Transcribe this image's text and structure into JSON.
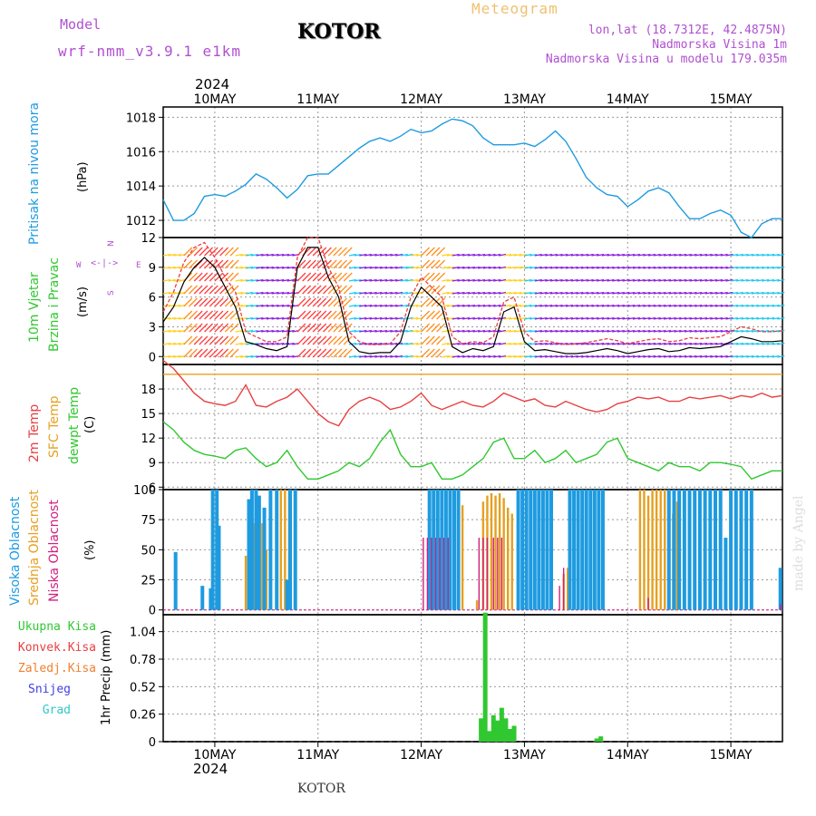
{
  "header": {
    "model_label": "Model",
    "model_name": "wrf-nmm_v3.9.1 e1km",
    "title": "KOTOR",
    "meteogram": "Meteogram",
    "lonlat": "lon,lat (18.7312E, 42.4875N)",
    "elevation": "Nadmorska Visina 1m",
    "model_elevation": "Nadmorska Visina u modelu 179.035m",
    "year_top": "2024"
  },
  "footer": {
    "year_bottom": "2024",
    "station": "KOTOR",
    "credit": "made by Angel"
  },
  "colors": {
    "pressure": "#1e9be0",
    "temp": "#e84040",
    "sfc": "#e6a020",
    "dewpt": "#30c830",
    "high_cloud": "#1e9be0",
    "mid_cloud": "#e6a020",
    "low_cloud": "#d02080",
    "precip": "#30c830",
    "wind_label": "#30c830",
    "purple": "#b050d0"
  },
  "day_labels": [
    "10MAY",
    "11MAY",
    "12MAY",
    "13MAY",
    "14MAY",
    "15MAY"
  ],
  "panels": {
    "pressure": {
      "ylabel_main": "Pritisak na nivou mora",
      "unit": "(hPa)"
    },
    "wind": {
      "label_a": "10m Vjetar",
      "label_b": "Brzina i Pravac",
      "unit": "(m/s)",
      "compass_top": "N",
      "compass_w": "W",
      "compass_e": "E",
      "compass_s": "S"
    },
    "temp": {
      "label_a": "2m Temp",
      "label_b": "SFC Temp",
      "label_c": "dewpt Temp",
      "unit": "(C)"
    },
    "cloud": {
      "label_a": "Visoka Oblacnost",
      "label_b": "Srednja Oblacnost",
      "label_c": "Niska Oblacnost",
      "unit": "(%)"
    },
    "precip": {
      "unit": "1hr Precip (mm)",
      "legend": [
        "Ukupna Kisa",
        "Konvek.Kisa",
        "Zaledj.Kisa",
        "Snijeg",
        "Grad"
      ],
      "legend_colors": [
        "#30c830",
        "#e84040",
        "#f08030",
        "#4040e0",
        "#30c8c8"
      ]
    }
  },
  "chart_data": [
    {
      "type": "line",
      "title": "",
      "ylabel": "Pritisak na nivou mora (hPa)",
      "x_unit": "days from 10 MAY 2024 00UTC",
      "xlim": [
        -0.5,
        5.5
      ],
      "yticks": [
        1012,
        1014,
        1016,
        1018
      ],
      "ylim": [
        1011,
        1018.6
      ],
      "series": [
        {
          "name": "Pritisak na nivou mora",
          "x": [
            -0.5,
            -0.4,
            -0.3,
            -0.2,
            -0.1,
            0,
            0.1,
            0.2,
            0.3,
            0.4,
            0.5,
            0.6,
            0.7,
            0.8,
            0.9,
            1.0,
            1.1,
            1.2,
            1.3,
            1.4,
            1.5,
            1.6,
            1.7,
            1.8,
            1.9,
            2.0,
            2.1,
            2.2,
            2.3,
            2.4,
            2.5,
            2.6,
            2.7,
            2.8,
            2.9,
            3.0,
            3.1,
            3.2,
            3.3,
            3.4,
            3.5,
            3.6,
            3.7,
            3.8,
            3.9,
            4.0,
            4.1,
            4.2,
            4.3,
            4.4,
            4.5,
            4.6,
            4.7,
            4.8,
            4.9,
            5.0,
            5.1,
            5.2,
            5.3,
            5.4,
            5.5
          ],
          "values": [
            1013.2,
            1012.0,
            1012.0,
            1012.4,
            1013.4,
            1013.5,
            1013.4,
            1013.7,
            1014.1,
            1014.7,
            1014.4,
            1013.9,
            1013.3,
            1013.8,
            1014.6,
            1014.7,
            1014.7,
            1015.2,
            1015.7,
            1016.2,
            1016.6,
            1016.8,
            1016.6,
            1016.9,
            1017.3,
            1017.1,
            1017.2,
            1017.6,
            1017.9,
            1017.8,
            1017.5,
            1016.8,
            1016.4,
            1016.4,
            1016.4,
            1016.5,
            1016.3,
            1016.7,
            1017.2,
            1016.6,
            1015.6,
            1014.5,
            1013.9,
            1013.5,
            1013.4,
            1012.8,
            1013.2,
            1013.7,
            1013.9,
            1013.6,
            1012.8,
            1012.1,
            1012.1,
            1012.4,
            1012.6,
            1012.3,
            1011.3,
            1011.0,
            1011.8,
            1012.1,
            1012.1
          ]
        }
      ]
    },
    {
      "type": "line",
      "title": "",
      "ylabel": "10m Vjetar Brzina i Pravac (m/s)",
      "x_unit": "days from 10 MAY 2024 00UTC",
      "xlim": [
        -0.5,
        5.5
      ],
      "yticks": [
        0,
        3,
        6,
        9,
        12
      ],
      "ylim": [
        -0.8,
        12
      ],
      "series": [
        {
          "name": "speed",
          "x": [
            -0.5,
            -0.4,
            -0.3,
            -0.2,
            -0.1,
            0,
            0.1,
            0.2,
            0.3,
            0.4,
            0.5,
            0.6,
            0.7,
            0.8,
            0.9,
            1.0,
            1.1,
            1.2,
            1.3,
            1.4,
            1.5,
            1.6,
            1.7,
            1.8,
            1.9,
            2.0,
            2.1,
            2.2,
            2.3,
            2.4,
            2.5,
            2.6,
            2.7,
            2.8,
            2.9,
            3.0,
            3.1,
            3.2,
            3.3,
            3.4,
            3.5,
            3.6,
            3.7,
            3.8,
            3.9,
            4.0,
            4.1,
            4.2,
            4.3,
            4.4,
            4.5,
            4.6,
            4.7,
            4.8,
            4.9,
            5.0,
            5.1,
            5.2,
            5.3,
            5.4,
            5.5
          ],
          "values": [
            3.5,
            5.0,
            7.5,
            9.0,
            10.0,
            9.0,
            7.0,
            5.0,
            1.5,
            1.2,
            0.8,
            0.6,
            1.0,
            9.0,
            11.0,
            11.0,
            8.0,
            6.0,
            1.5,
            0.5,
            0.3,
            0.4,
            0.4,
            1.5,
            5.0,
            7.0,
            6.0,
            5.0,
            1.0,
            0.4,
            0.8,
            0.6,
            1.0,
            4.5,
            5.0,
            1.5,
            0.6,
            0.7,
            0.5,
            0.3,
            0.3,
            0.4,
            0.6,
            0.8,
            0.6,
            0.3,
            0.5,
            0.7,
            0.8,
            0.5,
            0.6,
            0.9,
            0.8,
            0.9,
            1.0,
            1.5,
            2.0,
            1.8,
            1.5,
            1.5,
            1.6
          ]
        },
        {
          "name": "gust",
          "x": [
            -0.5,
            -0.4,
            -0.3,
            -0.2,
            -0.1,
            0,
            0.1,
            0.2,
            0.3,
            0.4,
            0.5,
            0.6,
            0.7,
            0.8,
            0.9,
            1.0,
            1.1,
            1.2,
            1.3,
            1.4,
            1.5,
            1.6,
            1.7,
            1.8,
            1.9,
            2.0,
            2.1,
            2.2,
            2.3,
            2.4,
            2.5,
            2.6,
            2.7,
            2.8,
            2.9,
            3.0,
            3.1,
            3.2,
            3.3,
            3.4,
            3.5,
            3.6,
            3.7,
            3.8,
            3.9,
            4.0,
            4.1,
            4.2,
            4.3,
            4.4,
            4.5,
            4.6,
            4.7,
            4.8,
            4.9,
            5.0,
            5.1,
            5.2,
            5.3,
            5.4,
            5.5
          ],
          "values": [
            4.5,
            6.5,
            9.5,
            11.0,
            11.5,
            10.0,
            8.0,
            6.5,
            2.5,
            2.0,
            1.5,
            1.5,
            2.0,
            10.0,
            12.0,
            12.0,
            9.0,
            7.0,
            2.5,
            1.5,
            1.2,
            1.2,
            1.3,
            2.5,
            6.0,
            8.0,
            7.0,
            6.0,
            2.0,
            1.3,
            1.5,
            1.4,
            2.0,
            5.5,
            6.0,
            2.5,
            1.5,
            1.6,
            1.4,
            1.2,
            1.3,
            1.4,
            1.6,
            1.8,
            1.6,
            1.3,
            1.5,
            1.7,
            1.8,
            1.5,
            1.6,
            1.9,
            1.8,
            1.9,
            2.0,
            2.5,
            3.0,
            2.8,
            2.5,
            2.5,
            2.6
          ]
        }
      ]
    },
    {
      "type": "line",
      "title": "",
      "ylabel": "Temp (C)",
      "x_unit": "days from 10 MAY 2024 00UTC",
      "xlim": [
        -0.5,
        5.5
      ],
      "yticks": [
        6,
        9,
        12,
        15,
        18
      ],
      "ylim": [
        5.7,
        21
      ],
      "series": [
        {
          "name": "2m Temp",
          "x": [
            -0.5,
            -0.4,
            -0.3,
            -0.2,
            -0.1,
            0,
            0.1,
            0.2,
            0.3,
            0.4,
            0.5,
            0.6,
            0.7,
            0.8,
            0.9,
            1.0,
            1.1,
            1.2,
            1.3,
            1.4,
            1.5,
            1.6,
            1.7,
            1.8,
            1.9,
            2.0,
            2.1,
            2.2,
            2.3,
            2.4,
            2.5,
            2.6,
            2.7,
            2.8,
            2.9,
            3.0,
            3.1,
            3.2,
            3.3,
            3.4,
            3.5,
            3.6,
            3.7,
            3.8,
            3.9,
            4.0,
            4.1,
            4.2,
            4.3,
            4.4,
            4.5,
            4.6,
            4.7,
            4.8,
            4.9,
            5.0,
            5.1,
            5.2,
            5.3,
            5.4,
            5.5
          ],
          "values": [
            21.5,
            20.5,
            19.0,
            17.5,
            16.5,
            16.2,
            16.0,
            16.5,
            18.5,
            16.0,
            15.8,
            16.5,
            17.0,
            18.0,
            16.5,
            15.0,
            14.0,
            13.5,
            15.5,
            16.5,
            17.0,
            16.5,
            15.5,
            15.8,
            16.5,
            17.5,
            16.0,
            15.5,
            16.0,
            16.5,
            16.0,
            15.8,
            16.5,
            17.5,
            17.0,
            16.5,
            16.8,
            16.0,
            15.8,
            16.5,
            16.0,
            15.5,
            15.2,
            15.5,
            16.2,
            16.5,
            17.0,
            16.8,
            17.0,
            16.5,
            16.5,
            17.0,
            16.8,
            17.0,
            17.2,
            16.8,
            17.2,
            17.0,
            17.5,
            17.0,
            17.2
          ]
        },
        {
          "name": "SFC Temp",
          "x": [
            -0.5,
            5.5
          ],
          "values": [
            19.8,
            19.8
          ]
        },
        {
          "name": "dewpt Temp",
          "x": [
            -0.5,
            -0.4,
            -0.3,
            -0.2,
            -0.1,
            0,
            0.1,
            0.2,
            0.3,
            0.4,
            0.5,
            0.6,
            0.7,
            0.8,
            0.9,
            1.0,
            1.1,
            1.2,
            1.3,
            1.4,
            1.5,
            1.6,
            1.7,
            1.8,
            1.9,
            2.0,
            2.1,
            2.2,
            2.3,
            2.4,
            2.5,
            2.6,
            2.7,
            2.8,
            2.9,
            3.0,
            3.1,
            3.2,
            3.3,
            3.4,
            3.5,
            3.6,
            3.7,
            3.8,
            3.9,
            4.0,
            4.1,
            4.2,
            4.3,
            4.4,
            4.5,
            4.6,
            4.7,
            4.8,
            4.9,
            5.0,
            5.1,
            5.2,
            5.3,
            5.4,
            5.5
          ],
          "values": [
            14.0,
            13.0,
            11.5,
            10.5,
            10.0,
            9.8,
            9.5,
            10.5,
            10.8,
            9.5,
            8.5,
            9.0,
            10.5,
            8.5,
            7.0,
            7.0,
            7.5,
            8.0,
            9.0,
            8.5,
            9.5,
            11.5,
            13.0,
            10.0,
            8.5,
            8.5,
            9.0,
            7.0,
            7.0,
            7.5,
            8.5,
            9.5,
            11.5,
            12.0,
            9.5,
            9.5,
            10.5,
            9.0,
            9.5,
            10.5,
            9.0,
            9.5,
            10.0,
            11.5,
            12.0,
            9.5,
            9.0,
            8.5,
            8.0,
            9.0,
            8.5,
            8.5,
            8.0,
            9.0,
            9.0,
            8.8,
            8.5,
            7.0,
            7.5,
            8.0,
            8.0
          ]
        }
      ]
    },
    {
      "type": "bar",
      "title": "",
      "ylabel": "Oblacnost (%)",
      "x_unit": "days from 10 MAY 2024 00UTC",
      "xlim": [
        -0.5,
        5.5
      ],
      "yticks": [
        0,
        25,
        50,
        75,
        100
      ],
      "ylim": [
        -4,
        100
      ],
      "series": [
        {
          "name": "Visoka Oblacnost",
          "x": [
            -0.38,
            -0.12,
            -0.04,
            -0.02,
            0.02,
            0.04,
            0.33,
            0.36,
            0.4,
            0.43,
            0.48,
            0.54,
            0.6,
            0.7,
            0.73,
            0.78,
            2.08,
            2.12,
            2.16,
            2.2,
            2.24,
            2.28,
            2.32,
            2.36,
            2.94,
            2.98,
            3.02,
            3.06,
            3.1,
            3.14,
            3.18,
            3.22,
            3.26,
            3.44,
            3.48,
            3.52,
            3.56,
            3.6,
            3.64,
            3.68,
            3.72,
            3.76,
            4.4,
            4.45,
            4.5,
            4.55,
            4.6,
            4.65,
            4.7,
            4.75,
            4.8,
            4.85,
            4.9,
            4.95,
            5.0,
            5.05,
            5.1,
            5.15,
            5.2,
            5.48
          ],
          "values": [
            48,
            20,
            18,
            100,
            100,
            70,
            92,
            100,
            100,
            95,
            85,
            100,
            100,
            25,
            100,
            100,
            100,
            100,
            100,
            100,
            100,
            100,
            100,
            100,
            100,
            100,
            100,
            100,
            100,
            100,
            100,
            100,
            100,
            100,
            100,
            100,
            100,
            100,
            100,
            100,
            100,
            100,
            100,
            100,
            100,
            100,
            100,
            100,
            100,
            100,
            100,
            100,
            100,
            60,
            100,
            100,
            100,
            100,
            100,
            35
          ]
        },
        {
          "name": "Srednja Oblacnost",
          "x": [
            0.3,
            0.35,
            0.38,
            0.42,
            0.46,
            0.5,
            0.64,
            0.68,
            0.72,
            2.4,
            2.54,
            2.6,
            2.64,
            2.68,
            2.72,
            2.76,
            2.8,
            2.84,
            2.88,
            3.38,
            3.42,
            4.12,
            4.16,
            4.2,
            4.24,
            4.28,
            4.32,
            4.36,
            4.4,
            4.44,
            4.48
          ],
          "values": [
            45,
            70,
            72,
            70,
            72,
            50,
            100,
            100,
            100,
            87,
            8,
            90,
            95,
            97,
            95,
            97,
            93,
            85,
            80,
            30,
            35,
            100,
            100,
            95,
            100,
            100,
            100,
            100,
            100,
            80,
            90
          ]
        },
        {
          "name": "Niska Oblacnost",
          "x": [
            -0.5,
            2.02,
            2.06,
            2.1,
            2.14,
            2.18,
            2.22,
            2.26,
            2.56,
            2.6,
            2.64,
            2.7,
            2.74,
            2.78,
            3.34,
            3.38,
            4.2,
            5.48
          ],
          "values": [
            0,
            60,
            60,
            60,
            60,
            60,
            60,
            60,
            60,
            60,
            60,
            60,
            60,
            60,
            20,
            35,
            10,
            5
          ]
        }
      ]
    },
    {
      "type": "bar",
      "title": "",
      "ylabel": "1hr Precip (mm)",
      "x_unit": "days from 10 MAY 2024 00UTC",
      "xlim": [
        -0.5,
        5.5
      ],
      "yticks": [
        0,
        0.26,
        0.52,
        0.78,
        1.04
      ],
      "ylim": [
        0,
        1.2
      ],
      "series": [
        {
          "name": "Ukupna Kisa",
          "x": [
            2.58,
            2.62,
            2.66,
            2.7,
            2.74,
            2.78,
            2.82,
            2.86,
            2.9,
            3.7,
            3.74
          ],
          "values": [
            0.22,
            1.22,
            0.1,
            0.25,
            0.2,
            0.32,
            0.22,
            0.12,
            0.15,
            0.03,
            0.05
          ]
        }
      ]
    }
  ]
}
